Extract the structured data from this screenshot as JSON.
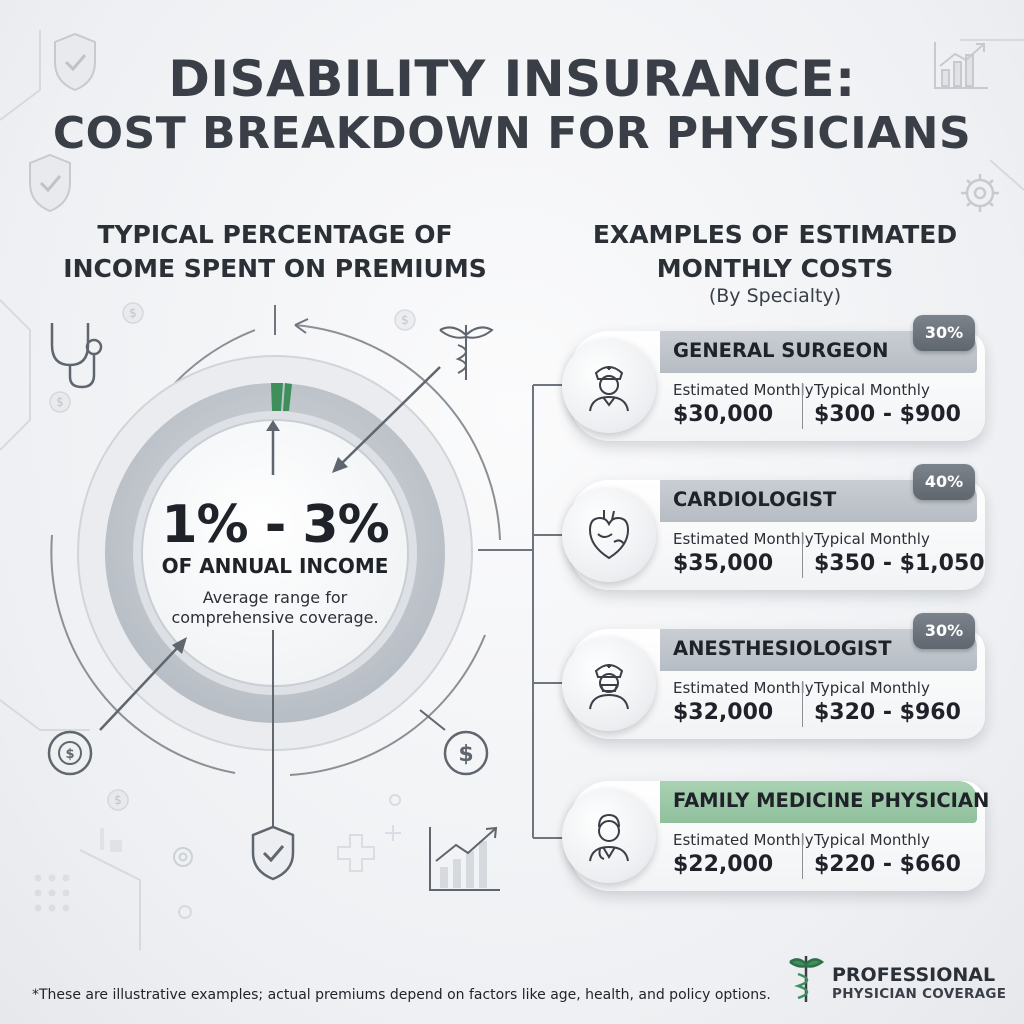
{
  "title": {
    "line1": "DISABILITY INSURANCE:",
    "line2": "COST BREAKDOWN FOR PHYSICIANS"
  },
  "left": {
    "heading_line1": "TYPICAL PERCENTAGE OF",
    "heading_line2": "INCOME SPENT ON PREMIUMS",
    "big_value": "1% - 3%",
    "big_label": "OF ANNUAL INCOME",
    "caption_line1": "Average range for",
    "caption_line2": "comprehensive coverage.",
    "accent_color": "#3f8f5c"
  },
  "right": {
    "heading_line1": "EXAMPLES OF ESTIMATED",
    "heading_line2": "MONTHLY COSTS",
    "subheading": "(By Specialty)",
    "estimated_label": "Estimated Monthly",
    "typical_label": "Typical Monthly",
    "cards": [
      {
        "name": "GENERAL SURGEON",
        "badge": "30%",
        "estimated": "$30,000",
        "typical": "$300 - $900",
        "icon": "surgeon-icon"
      },
      {
        "name": "CARDIOLOGIST",
        "badge": "40%",
        "estimated": "$35,000",
        "typical": "$350 - $1,050",
        "icon": "heart-icon"
      },
      {
        "name": "ANESTHESIOLOGIST",
        "badge": "30%",
        "estimated": "$32,000",
        "typical": "$320 - $960",
        "icon": "anesthesiologist-icon"
      },
      {
        "name": "FAMILY MEDICINE PHYSICIAN",
        "badge": "",
        "estimated": "$22,000",
        "typical": "$220 - $660",
        "icon": "doctor-icon"
      }
    ]
  },
  "footnote": "*These are illustrative examples; actual premiums depend on factors like age, health, and policy options.",
  "brand": {
    "line1": "PROFESSIONAL",
    "line2": "PHYSICIAN COVERAGE",
    "icon": "caduceus-icon"
  }
}
